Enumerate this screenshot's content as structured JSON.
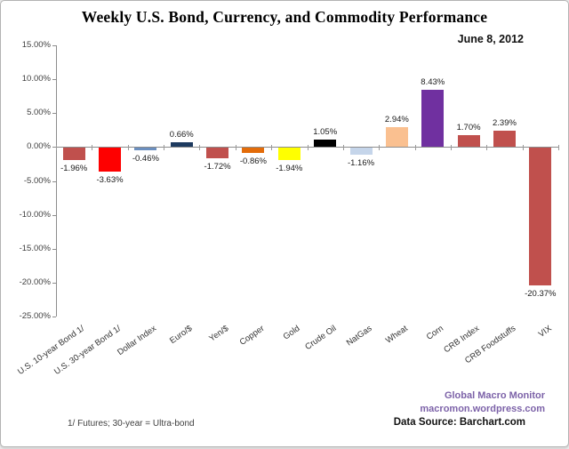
{
  "header": {
    "title": "Weekly U.S. Bond, Currency, and Commodity Performance",
    "date": "June 8, 2012"
  },
  "chart_data": {
    "type": "bar",
    "title": "Weekly U.S. Bond, Currency, and Commodity Performance",
    "subtitle": "June 8, 2012",
    "categories": [
      "U.S. 10-year Bond 1/",
      "U.S. 30-year Bond 1/",
      "Dollar Index",
      "Euro/$",
      "Yen/$",
      "Copper",
      "Gold",
      "Crude Oil",
      "NatGas",
      "Wheat",
      "Corn",
      "CRB Index",
      "CRB Foodstuffs",
      "VIX"
    ],
    "values": [
      -1.96,
      -3.63,
      -0.46,
      0.66,
      -1.72,
      -0.86,
      -1.94,
      1.05,
      -1.16,
      2.94,
      8.43,
      1.7,
      2.39,
      -20.37
    ],
    "data_labels": [
      "-1.96%",
      "-3.63%",
      "-0.46%",
      "0.66%",
      "-1.72%",
      "-0.86%",
      "-1.94%",
      "1.05%",
      "-1.16%",
      "2.94%",
      "8.43%",
      "1.70%",
      "2.39%",
      "-20.37%"
    ],
    "bar_colors": [
      "#c0504d",
      "#fe0000",
      "#6b8fbf",
      "#1d3a5f",
      "#c0504d",
      "#e36c0a",
      "#ffff00",
      "#000000",
      "#c5d5ea",
      "#fac090",
      "#7030a0",
      "#c0504d",
      "#c0504d",
      "#c0504d"
    ],
    "y_tick_values": [
      15,
      10,
      5,
      0,
      -5,
      -10,
      -15,
      -20,
      -25
    ],
    "y_tick_labels": [
      "15.00%",
      "10.00%",
      "5.00%",
      "0.00%",
      "-5.00%",
      "-10.00%",
      "-15.00%",
      "-20.00%",
      "-25.00%"
    ],
    "ylim": [
      -25,
      15
    ],
    "grid": false,
    "legend": "none",
    "axis_color": "#8c8c8c"
  },
  "footer": {
    "footnote": "1/  Futures; 30-year = Ultra-bond",
    "brand_line1": "Global Macro Monitor",
    "brand_line2": "macromon.wordpress.com",
    "brand_color": "#7c62a8",
    "source_label": "Data Source:  Barchart.com"
  }
}
